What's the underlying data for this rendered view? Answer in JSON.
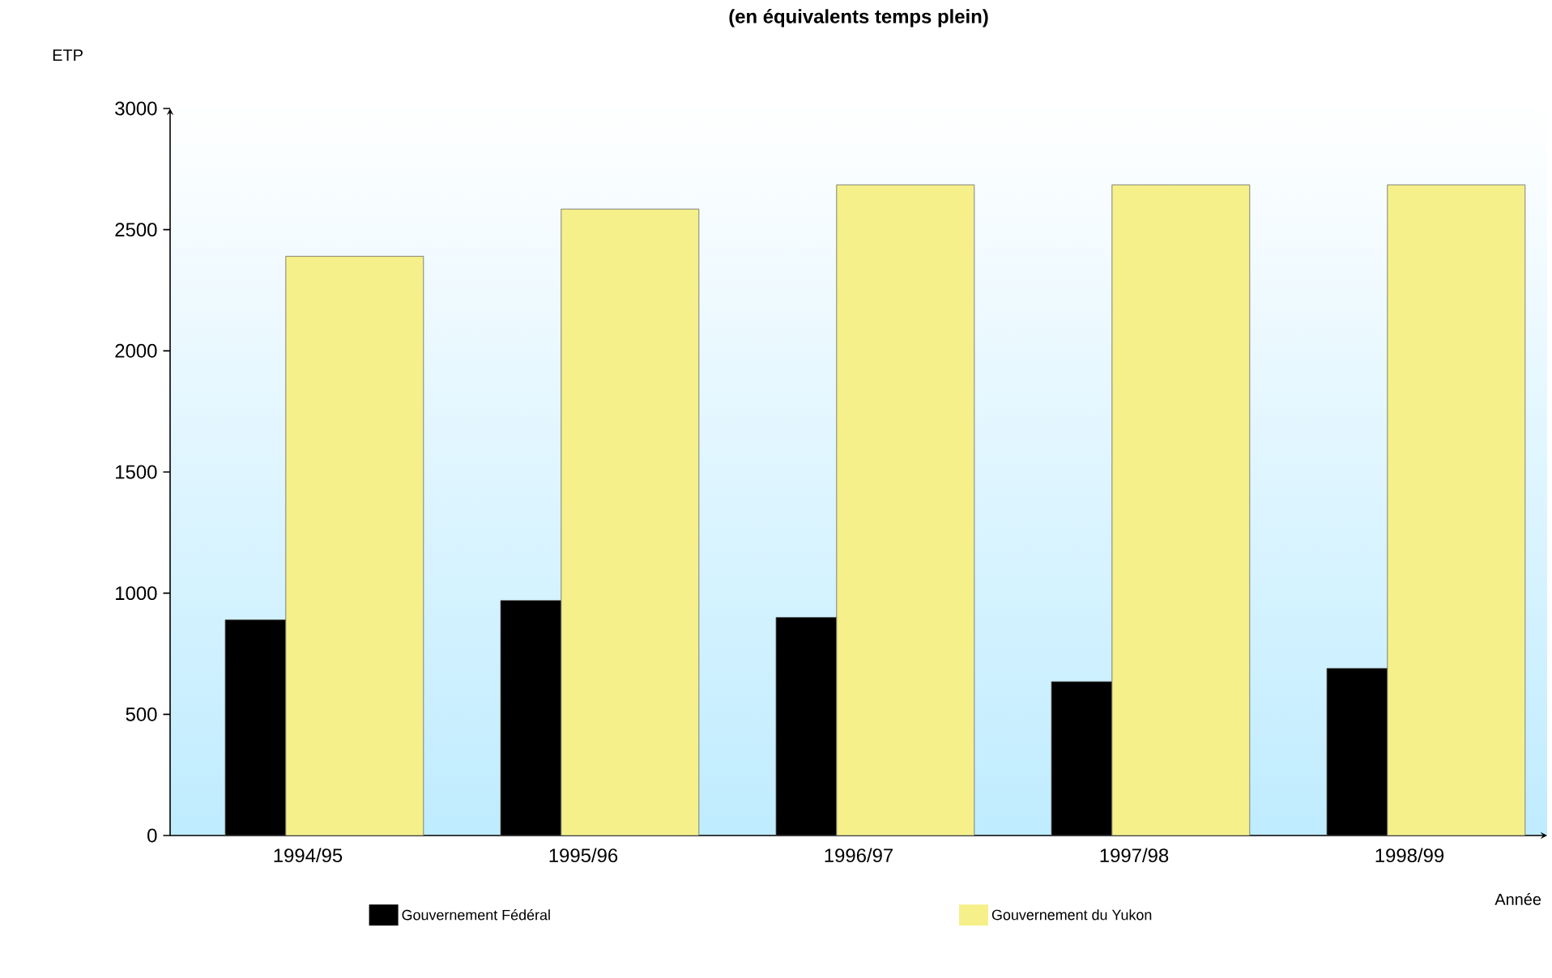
{
  "chart_data": {
    "type": "bar",
    "title": "(en équivalents temps plein)",
    "ylabel": "ETP",
    "xlabel": "Année",
    "categories": [
      "1994/95",
      "1995/96",
      "1996/97",
      "1997/98",
      "1998/99"
    ],
    "series": [
      {
        "name": "Gouvernement Fédéral",
        "color": "#000000",
        "values": [
          890,
          970,
          900,
          635,
          690
        ]
      },
      {
        "name": "Gouvernement du Yukon",
        "color": "#f5f08a",
        "values": [
          2390,
          2585,
          2685,
          2685,
          2685
        ]
      }
    ],
    "ylim": [
      0,
      3000
    ],
    "yticks": [
      0,
      500,
      1000,
      1500,
      2000,
      2500,
      3000
    ],
    "grid": false,
    "legend": "bottom"
  }
}
